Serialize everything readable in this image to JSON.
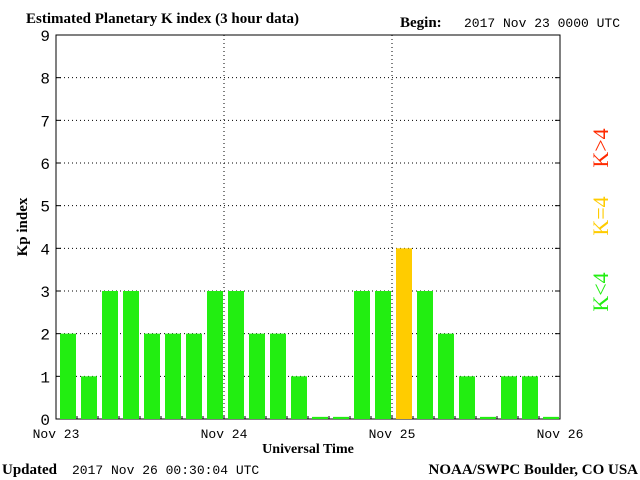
{
  "header": {
    "title": "Estimated Planetary K index (3 hour data)",
    "begin_label": "Begin:",
    "begin_value": "2017 Nov 23 0000 UTC"
  },
  "footer": {
    "updated_label": "Updated",
    "updated_value": "2017 Nov 26 00:30:04 UTC",
    "source": "NOAA/SWPC Boulder, CO USA"
  },
  "legend": {
    "above": {
      "label": "K>4",
      "color": "#ff2a00"
    },
    "equal": {
      "label": "K=4",
      "color": "#ffcc00"
    },
    "below": {
      "label": "K<4",
      "color": "#22ee11"
    }
  },
  "chart_data": {
    "type": "bar",
    "title": "Estimated Planetary K index (3 hour data)",
    "xlabel": "Universal Time",
    "ylabel": "Kp index",
    "ylim": [
      0,
      9
    ],
    "yticks": [
      0,
      1,
      2,
      3,
      4,
      5,
      6,
      7,
      8,
      9
    ],
    "xticks": [
      "Nov 23",
      "Nov 24",
      "Nov 25",
      "Nov 26"
    ],
    "interval_hours": 3,
    "grid": true,
    "values": [
      2,
      1,
      3,
      3,
      2,
      2,
      2,
      3,
      3,
      2,
      2,
      1,
      0.05,
      0.05,
      3,
      3,
      4,
      3,
      2,
      1,
      0.05,
      1,
      1,
      0.05
    ],
    "colors": {
      "below": "#22ee11",
      "equal": "#ffcc00",
      "above": "#ff2a00"
    }
  }
}
